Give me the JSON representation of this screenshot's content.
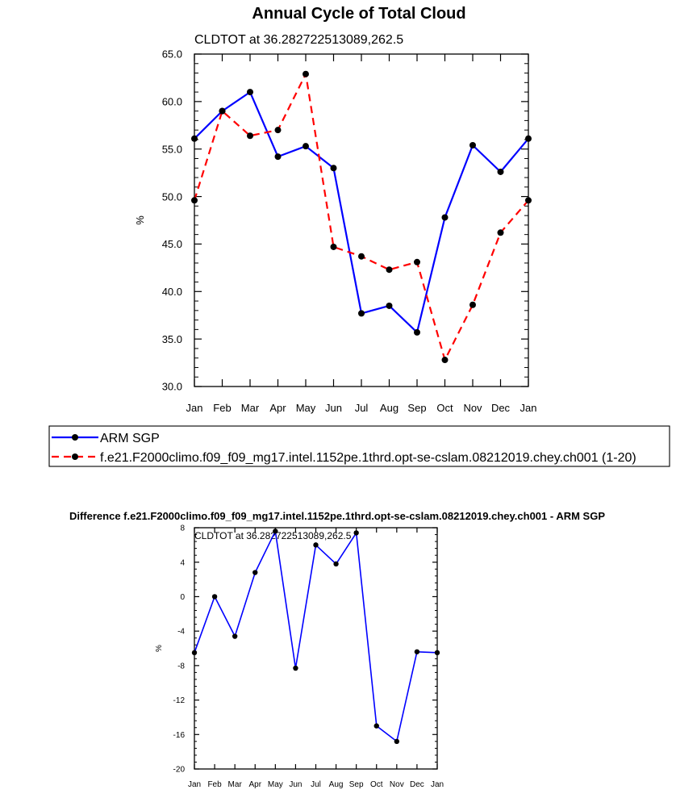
{
  "chart_data": [
    {
      "type": "line",
      "title": "Annual Cycle of Total Cloud",
      "subtitle": "CLDTOT at 36.282722513089,262.5",
      "xlabel": "",
      "ylabel": "%",
      "categories": [
        "Jan",
        "Feb",
        "Mar",
        "Apr",
        "May",
        "Jun",
        "Jul",
        "Aug",
        "Sep",
        "Oct",
        "Nov",
        "Dec",
        "Jan"
      ],
      "ylim": [
        30,
        65
      ],
      "yticks": [
        "30.0",
        "35.0",
        "40.0",
        "45.0",
        "50.0",
        "55.0",
        "60.0",
        "65.0"
      ],
      "series": [
        {
          "name": "ARM SGP",
          "color": "#0000ff",
          "dash": "solid",
          "values": [
            56.1,
            59.0,
            61.0,
            54.2,
            55.3,
            53.0,
            37.7,
            38.5,
            35.7,
            47.8,
            55.4,
            52.6,
            56.1
          ]
        },
        {
          "name": "f.e21.F2000climo.f09_f09_mg17.intel.1152pe.1thrd.opt-se-cslam.08212019.chey.ch001 (1-20)",
          "color": "#ff0000",
          "dash": "dashed",
          "values": [
            49.6,
            59.0,
            56.4,
            57.0,
            62.9,
            44.7,
            43.7,
            42.3,
            43.1,
            32.8,
            38.6,
            46.2,
            49.6
          ]
        }
      ]
    },
    {
      "type": "line",
      "title": "Difference f.e21.F2000climo.f09_f09_mg17.intel.1152pe.1thrd.opt-se-cslam.08212019.chey.ch001 - ARM SGP",
      "subtitle": "CLDTOT at 36.282722513089,262.5",
      "xlabel": "",
      "ylabel": "%",
      "categories": [
        "Jan",
        "Feb",
        "Mar",
        "Apr",
        "May",
        "Jun",
        "Jul",
        "Aug",
        "Sep",
        "Oct",
        "Nov",
        "Dec",
        "Jan"
      ],
      "ylim": [
        -20,
        8
      ],
      "yticks": [
        "-20",
        "-16",
        "-12",
        "-8",
        "-4",
        "0",
        "4",
        "8"
      ],
      "series": [
        {
          "name": "Difference",
          "color": "#0000ff",
          "dash": "solid",
          "values": [
            -6.5,
            0.0,
            -4.6,
            2.8,
            7.6,
            -8.3,
            6.0,
            3.8,
            7.4,
            -15.0,
            -16.8,
            -6.4,
            -6.5
          ]
        }
      ]
    }
  ]
}
